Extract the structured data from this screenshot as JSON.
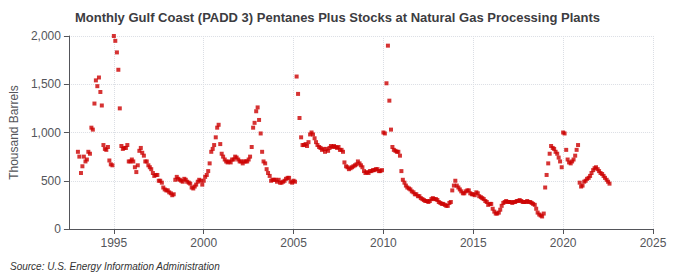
{
  "chart_data": {
    "type": "scatter",
    "title": "Monthly Gulf Coast (PADD 3) Pentanes Plus Stocks at Natural Gas Processing Plants",
    "ylabel": "Thousand Barrels",
    "annotation": "Source: U.S. Energy Information Administration",
    "color": "#cc0000",
    "marker": "square",
    "grid": true,
    "xlim": [
      1992.5,
      2025
    ],
    "xticks": [
      1995,
      2000,
      2005,
      2010,
      2015,
      2020,
      2025
    ],
    "ylim": [
      0,
      2000
    ],
    "yticks": [
      0,
      500,
      {
        "value": 1000,
        "label": "1,000"
      },
      {
        "value": 1500,
        "label": "1,500"
      },
      {
        "value": 2000,
        "label": "2,000"
      }
    ],
    "x": [
      1993.0,
      1993.08,
      1993.17,
      1993.25,
      1993.33,
      1993.42,
      1993.5,
      1993.58,
      1993.67,
      1993.75,
      1993.83,
      1993.92,
      1994.0,
      1994.08,
      1994.17,
      1994.25,
      1994.33,
      1994.42,
      1994.5,
      1994.58,
      1994.67,
      1994.75,
      1994.83,
      1994.92,
      1995.0,
      1995.08,
      1995.17,
      1995.25,
      1995.33,
      1995.42,
      1995.5,
      1995.58,
      1995.67,
      1995.75,
      1995.83,
      1995.92,
      1996.0,
      1996.08,
      1996.17,
      1996.25,
      1996.33,
      1996.42,
      1996.5,
      1996.58,
      1996.67,
      1996.75,
      1996.83,
      1996.92,
      1997.0,
      1997.08,
      1997.17,
      1997.25,
      1997.33,
      1997.42,
      1997.5,
      1997.58,
      1997.67,
      1997.75,
      1997.83,
      1997.92,
      1998.0,
      1998.08,
      1998.17,
      1998.25,
      1998.33,
      1998.42,
      1998.5,
      1998.58,
      1998.67,
      1998.75,
      1998.83,
      1998.92,
      1999.0,
      1999.08,
      1999.17,
      1999.25,
      1999.33,
      1999.42,
      1999.5,
      1999.58,
      1999.67,
      1999.75,
      1999.83,
      1999.92,
      2000.0,
      2000.08,
      2000.17,
      2000.25,
      2000.33,
      2000.42,
      2000.5,
      2000.58,
      2000.67,
      2000.75,
      2000.83,
      2000.92,
      2001.0,
      2001.08,
      2001.17,
      2001.25,
      2001.33,
      2001.42,
      2001.5,
      2001.58,
      2001.67,
      2001.75,
      2001.83,
      2001.92,
      2002.0,
      2002.08,
      2002.17,
      2002.25,
      2002.33,
      2002.42,
      2002.5,
      2002.58,
      2002.67,
      2002.75,
      2002.83,
      2002.92,
      2003.0,
      2003.08,
      2003.17,
      2003.25,
      2003.33,
      2003.42,
      2003.5,
      2003.58,
      2003.67,
      2003.75,
      2003.83,
      2003.92,
      2004.0,
      2004.08,
      2004.17,
      2004.25,
      2004.33,
      2004.42,
      2004.5,
      2004.58,
      2004.67,
      2004.75,
      2004.83,
      2004.92,
      2005.0,
      2005.08,
      2005.17,
      2005.25,
      2005.33,
      2005.42,
      2005.5,
      2005.58,
      2005.67,
      2005.75,
      2005.83,
      2005.92,
      2006.0,
      2006.08,
      2006.17,
      2006.25,
      2006.33,
      2006.42,
      2006.5,
      2006.58,
      2006.67,
      2006.75,
      2006.83,
      2006.92,
      2007.0,
      2007.08,
      2007.17,
      2007.25,
      2007.33,
      2007.42,
      2007.5,
      2007.58,
      2007.67,
      2007.75,
      2007.83,
      2007.92,
      2008.0,
      2008.08,
      2008.17,
      2008.25,
      2008.33,
      2008.42,
      2008.5,
      2008.58,
      2008.67,
      2008.75,
      2008.83,
      2008.92,
      2009.0,
      2009.08,
      2009.17,
      2009.25,
      2009.33,
      2009.42,
      2009.5,
      2009.58,
      2009.67,
      2009.75,
      2009.83,
      2009.92,
      2010.0,
      2010.08,
      2010.17,
      2010.25,
      2010.33,
      2010.42,
      2010.5,
      2010.58,
      2010.67,
      2010.75,
      2010.83,
      2010.92,
      2011.0,
      2011.08,
      2011.17,
      2011.25,
      2011.33,
      2011.42,
      2011.5,
      2011.58,
      2011.67,
      2011.75,
      2011.83,
      2011.92,
      2012.0,
      2012.08,
      2012.17,
      2012.25,
      2012.33,
      2012.42,
      2012.5,
      2012.58,
      2012.67,
      2012.75,
      2012.83,
      2012.92,
      2013.0,
      2013.08,
      2013.17,
      2013.25,
      2013.33,
      2013.42,
      2013.5,
      2013.58,
      2013.67,
      2013.75,
      2013.83,
      2013.92,
      2014.0,
      2014.08,
      2014.17,
      2014.25,
      2014.33,
      2014.42,
      2014.5,
      2014.58,
      2014.67,
      2014.75,
      2014.83,
      2014.92,
      2015.0,
      2015.08,
      2015.17,
      2015.25,
      2015.33,
      2015.42,
      2015.5,
      2015.58,
      2015.67,
      2015.75,
      2015.83,
      2015.92,
      2016.0,
      2016.08,
      2016.17,
      2016.25,
      2016.33,
      2016.42,
      2016.5,
      2016.58,
      2016.67,
      2016.75,
      2016.83,
      2016.92,
      2017.0,
      2017.08,
      2017.17,
      2017.25,
      2017.33,
      2017.42,
      2017.5,
      2017.58,
      2017.67,
      2017.75,
      2017.83,
      2017.92,
      2018.0,
      2018.08,
      2018.17,
      2018.25,
      2018.33,
      2018.42,
      2018.5,
      2018.58,
      2018.67,
      2018.75,
      2018.83,
      2018.92,
      2019.0,
      2019.08,
      2019.17,
      2019.25,
      2019.33,
      2019.42,
      2019.5,
      2019.58,
      2019.67,
      2019.75,
      2019.83,
      2019.92,
      2020.0,
      2020.08,
      2020.17,
      2020.25,
      2020.33,
      2020.42,
      2020.5,
      2020.58,
      2020.67,
      2020.75,
      2020.83,
      2020.92,
      2021.0,
      2021.08,
      2021.17,
      2021.25,
      2021.33,
      2021.42,
      2021.5,
      2021.58,
      2021.67,
      2021.75,
      2021.83,
      2021.92,
      2022.0,
      2022.08,
      2022.17,
      2022.25,
      2022.33,
      2022.42,
      2022.5,
      2022.58
    ],
    "values": [
      800,
      750,
      580,
      650,
      750,
      700,
      720,
      800,
      780,
      1050,
      1030,
      1300,
      1540,
      1480,
      1570,
      1420,
      1280,
      870,
      830,
      820,
      850,
      710,
      670,
      660,
      2000,
      1950,
      1830,
      1650,
      1250,
      860,
      830,
      840,
      840,
      870,
      700,
      700,
      720,
      700,
      640,
      590,
      660,
      810,
      840,
      790,
      760,
      700,
      700,
      660,
      640,
      620,
      580,
      550,
      560,
      560,
      500,
      500,
      480,
      430,
      410,
      400,
      400,
      380,
      370,
      350,
      360,
      510,
      540,
      520,
      510,
      500,
      490,
      520,
      510,
      490,
      480,
      470,
      430,
      420,
      440,
      460,
      490,
      510,
      500,
      460,
      500,
      540,
      560,
      600,
      680,
      800,
      830,
      870,
      950,
      1050,
      1080,
      880,
      780,
      750,
      720,
      700,
      690,
      700,
      690,
      720,
      720,
      750,
      740,
      720,
      700,
      700,
      680,
      700,
      700,
      700,
      720,
      750,
      850,
      1050,
      1100,
      1220,
      1260,
      1130,
      990,
      800,
      700,
      680,
      620,
      580,
      550,
      500,
      510,
      510,
      510,
      490,
      510,
      480,
      480,
      490,
      500,
      520,
      530,
      530,
      490,
      480,
      500,
      490,
      1580,
      1400,
      1150,
      950,
      870,
      870,
      880,
      860,
      900,
      980,
      1000,
      980,
      940,
      900,
      870,
      850,
      840,
      820,
      830,
      800,
      830,
      810,
      840,
      860,
      850,
      860,
      850,
      840,
      850,
      820,
      820,
      800,
      690,
      650,
      640,
      620,
      630,
      640,
      650,
      660,
      670,
      700,
      680,
      660,
      640,
      600,
      580,
      590,
      580,
      600,
      600,
      610,
      610,
      620,
      620,
      600,
      600,
      610,
      1000,
      990,
      1510,
      1900,
      1330,
      1030,
      850,
      820,
      810,
      800,
      800,
      760,
      600,
      510,
      480,
      450,
      430,
      420,
      410,
      390,
      380,
      360,
      360,
      340,
      340,
      320,
      310,
      300,
      290,
      290,
      280,
      290,
      310,
      320,
      310,
      310,
      300,
      280,
      270,
      260,
      260,
      250,
      240,
      240,
      270,
      280,
      400,
      450,
      500,
      450,
      430,
      410,
      390,
      370,
      370,
      390,
      400,
      400,
      370,
      360,
      360,
      350,
      380,
      370,
      340,
      330,
      320,
      310,
      290,
      280,
      250,
      260,
      260,
      210,
      180,
      160,
      160,
      170,
      200,
      240,
      270,
      280,
      290,
      280,
      280,
      280,
      270,
      280,
      280,
      290,
      290,
      300,
      290,
      280,
      280,
      280,
      290,
      280,
      280,
      270,
      260,
      250,
      210,
      170,
      150,
      140,
      130,
      160,
      430,
      560,
      680,
      780,
      860,
      840,
      830,
      800,
      780,
      740,
      700,
      640,
      1000,
      990,
      820,
      720,
      690,
      680,
      700,
      720,
      760,
      820,
      870,
      480,
      440,
      450,
      490,
      500,
      520,
      530,
      550,
      580,
      610,
      630,
      640,
      620,
      600,
      580,
      570,
      550,
      530,
      510,
      490,
      470
    ]
  }
}
